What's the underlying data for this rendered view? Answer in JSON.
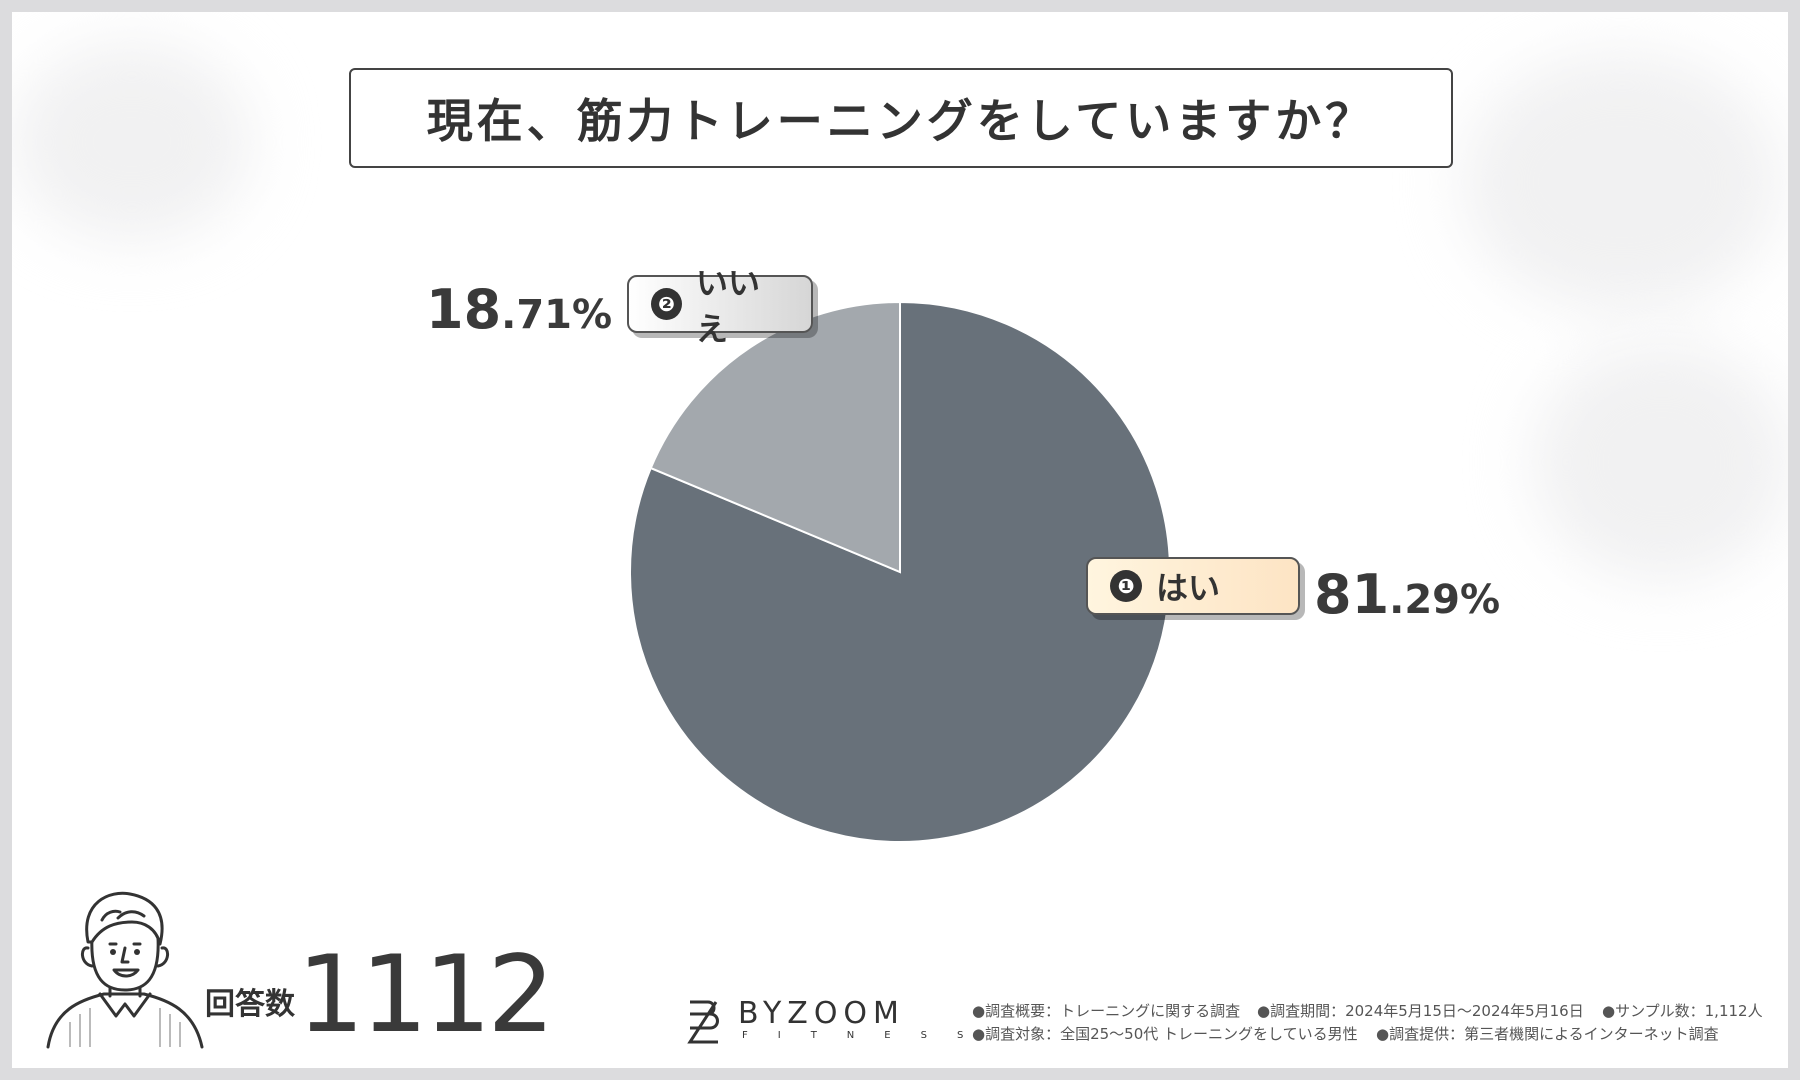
{
  "title": "現在、筋力トレーニングをしていますか？",
  "chart_data": {
    "type": "pie",
    "title": "現在、筋力トレーニングをしていますか？",
    "slices": [
      {
        "marker": "❶",
        "label": "はい",
        "value": 81.29,
        "big": "81",
        "small": ".29%",
        "color": "#68717a"
      },
      {
        "marker": "❷",
        "label": "いいえ",
        "value": 18.71,
        "big": "18",
        "small": ".71%",
        "color": "#a3a8ad"
      }
    ],
    "start_angle_deg": 0,
    "direction": "clockwise",
    "slice_border_color": "#ffffff"
  },
  "respondents": {
    "label": "回答数",
    "count": "1112"
  },
  "brand": {
    "name": "BYZOOM",
    "sub": "FITNESS"
  },
  "notes": {
    "overview": "●調査概要：トレーニングに関する調査",
    "period": "●調査期間：2024年5月15日〜2024年5月16日",
    "sample": "●サンプル数：1,112人",
    "target": "●調査対象：全国25〜50代 トレーニングをしている男性",
    "provider": "●調査提供：第三者機関によるインターネット調査"
  }
}
